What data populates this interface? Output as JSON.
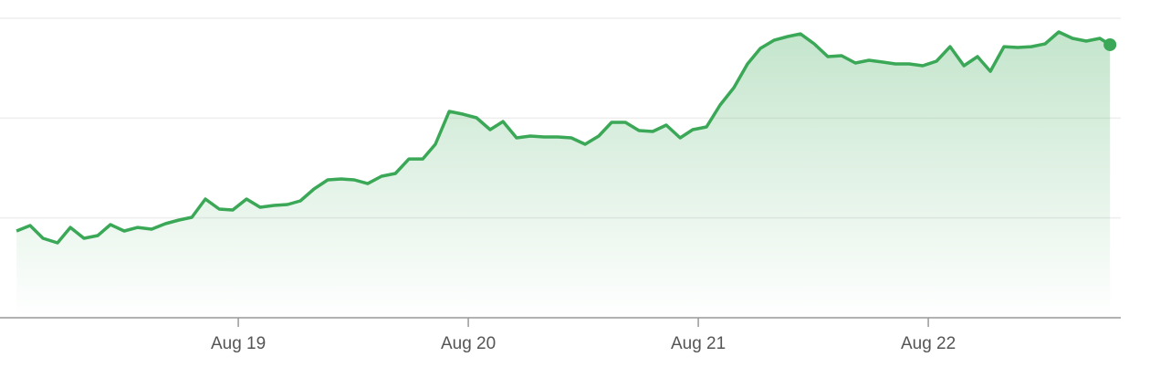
{
  "chart_data": {
    "type": "line",
    "x": [
      18.036,
      18.095,
      18.151,
      18.214,
      18.27,
      18.329,
      18.389,
      18.444,
      18.504,
      18.563,
      18.623,
      18.683,
      18.742,
      18.798,
      18.857,
      18.917,
      18.976,
      19.036,
      19.095,
      19.155,
      19.214,
      19.27,
      19.329,
      19.389,
      19.448,
      19.504,
      19.563,
      19.623,
      19.683,
      19.742,
      19.802,
      19.857,
      19.917,
      19.976,
      20.036,
      20.095,
      20.151,
      20.21,
      20.27,
      20.329,
      20.389,
      20.448,
      20.508,
      20.567,
      20.623,
      20.683,
      20.742,
      20.802,
      20.861,
      20.921,
      20.976,
      21.036,
      21.095,
      21.155,
      21.214,
      21.27,
      21.329,
      21.389,
      21.444,
      21.504,
      21.563,
      21.623,
      21.683,
      21.742,
      21.802,
      21.857,
      21.917,
      21.976,
      22.036,
      22.095,
      22.155,
      22.214,
      22.27,
      22.329,
      22.389,
      22.448,
      22.508,
      22.567,
      22.627,
      22.687,
      22.746,
      22.79
    ],
    "series": [
      {
        "color": "#3aa856",
        "values": [
          86.9,
          92.4,
          79.6,
          75,
          90.5,
          79.6,
          82.3,
          93.3,
          86.9,
          90.5,
          88.7,
          94.2,
          97.9,
          100.6,
          118.9,
          108.8,
          107.9,
          118.9,
          110.7,
          112.5,
          113.4,
          117.1,
          129,
          138.1,
          139,
          138.1,
          134.4,
          141.8,
          144.5,
          159.1,
          159.1,
          173.8,
          206.7,
          204,
          200.3,
          188.4,
          196.6,
          180.2,
          182,
          181.1,
          181.1,
          180.2,
          173.8,
          182,
          195.7,
          195.7,
          187.5,
          186.6,
          193,
          180.2,
          188.4,
          191.2,
          213.1,
          230.5,
          254.3,
          269.8,
          278,
          281.7,
          284.4,
          274.4,
          261.6,
          262.5,
          255.2,
          257.9,
          256.1,
          254.3,
          254.3,
          252.4,
          257,
          271.6,
          252.4,
          261.6,
          246.9,
          271.6,
          270.7,
          271.6,
          274.4,
          286.3,
          279.9,
          277.1,
          279.9,
          273.5
        ]
      }
    ],
    "xlim": [
      17.964,
      22.837
    ],
    "xticks": [
      {
        "value": 19,
        "label": "Aug 19"
      },
      {
        "value": 20,
        "label": "Aug 20"
      },
      {
        "value": 21,
        "label": "Aug 21"
      },
      {
        "value": 22,
        "label": "Aug 22"
      }
    ],
    "ylim": [
      0,
      300
    ],
    "yticks": [
      100,
      200,
      300
    ],
    "grid": true
  }
}
